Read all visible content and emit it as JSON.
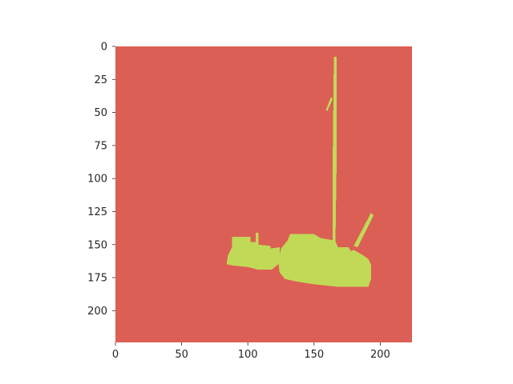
{
  "chart_data": {
    "type": "heatmap",
    "description_kind": "segmentation mask (imshow)",
    "image_size": [
      224,
      224
    ],
    "colors": {
      "background": "#dc5f55",
      "foreground": "#c0da57"
    },
    "x_ticks": [
      0,
      50,
      100,
      150,
      200
    ],
    "y_ticks": [
      0,
      25,
      50,
      75,
      100,
      125,
      150,
      175,
      200
    ],
    "xlim": [
      0,
      224
    ],
    "ylim": [
      224,
      0
    ],
    "grid": false,
    "mask_regions_data_units": [
      {
        "name": "left-block",
        "points": [
          [
            88,
            144
          ],
          [
            102,
            144
          ],
          [
            102,
            148
          ],
          [
            108,
            148
          ],
          [
            108,
            150
          ],
          [
            117,
            151
          ],
          [
            117,
            153
          ],
          [
            124,
            152
          ],
          [
            124,
            164
          ],
          [
            118,
            169
          ],
          [
            108,
            169
          ],
          [
            100,
            167
          ],
          [
            90,
            166
          ],
          [
            84,
            165
          ],
          [
            85,
            158
          ],
          [
            88,
            152
          ]
        ]
      },
      {
        "name": "main-body",
        "points": [
          [
            125,
            153
          ],
          [
            130,
            147
          ],
          [
            132,
            142
          ],
          [
            150,
            142
          ],
          [
            155,
            145
          ],
          [
            166,
            147
          ],
          [
            168,
            152
          ],
          [
            176,
            152
          ],
          [
            178,
            155
          ],
          [
            180,
            154
          ],
          [
            187,
            158
          ],
          [
            191,
            161
          ],
          [
            193,
            165
          ],
          [
            193,
            176
          ],
          [
            191,
            182
          ],
          [
            168,
            182
          ],
          [
            150,
            180
          ],
          [
            137,
            178
          ],
          [
            128,
            176
          ],
          [
            124,
            171
          ],
          [
            123,
            163
          ]
        ]
      },
      {
        "name": "mast",
        "points": [
          [
            165,
            8
          ],
          [
            167,
            8
          ],
          [
            167,
            95
          ],
          [
            166,
            160
          ],
          [
            164,
            160
          ],
          [
            164,
            95
          ]
        ]
      },
      {
        "name": "mast-spur",
        "points": [
          [
            159,
            48
          ],
          [
            163,
            38
          ],
          [
            164,
            40
          ],
          [
            160,
            49
          ]
        ]
      },
      {
        "name": "diagonal-spar",
        "points": [
          [
            193,
            126
          ],
          [
            195,
            128
          ],
          [
            183,
            152
          ],
          [
            180,
            151
          ]
        ]
      },
      {
        "name": "small-stub",
        "points": [
          [
            106,
            141
          ],
          [
            108,
            141
          ],
          [
            108,
            148
          ],
          [
            106,
            148
          ]
        ]
      }
    ]
  }
}
